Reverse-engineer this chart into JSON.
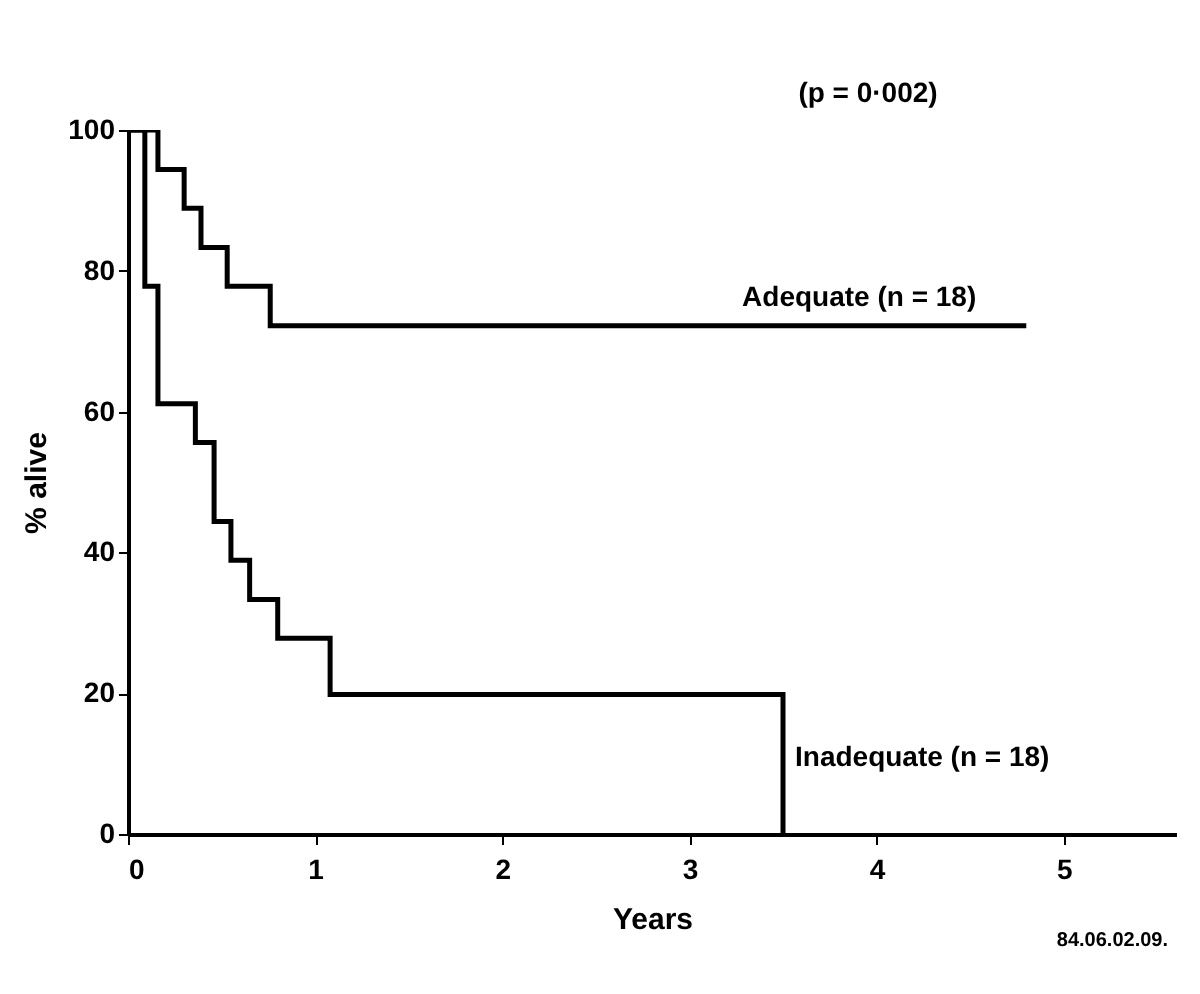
{
  "chart_data": {
    "type": "step",
    "xlabel": "Years",
    "ylabel": "% alive",
    "xlim": [
      0,
      5.6
    ],
    "xticks": [
      0,
      1,
      2,
      3,
      4,
      5
    ],
    "ylim": [
      0,
      100
    ],
    "yticks": [
      0,
      20,
      40,
      60,
      80,
      100
    ],
    "grid": false,
    "marker": "none",
    "line_style": "solid",
    "annotations": [
      "(p = 0·002)",
      "84.06.02.09."
    ],
    "series": [
      {
        "name": "Adequate (n = 18)",
        "color": "#000000",
        "x": [
          0,
          0.16,
          0.3,
          0.39,
          0.53,
          0.76,
          4.8
        ],
        "values": [
          100,
          94.4,
          88.9,
          83.3,
          77.8,
          72.2,
          72.2
        ]
      },
      {
        "name": "Inadequate (n = 18)",
        "color": "#000000",
        "x": [
          0,
          0.09,
          0.16,
          0.36,
          0.46,
          0.55,
          0.65,
          0.8,
          1.08,
          3.5
        ],
        "values": [
          100,
          77.8,
          61.1,
          55.6,
          44.4,
          38.9,
          33.3,
          27.8,
          19.8,
          0
        ]
      }
    ]
  }
}
